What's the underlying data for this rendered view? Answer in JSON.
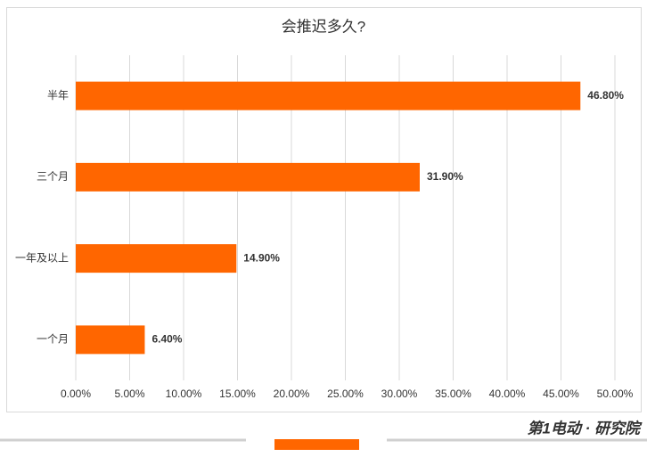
{
  "chart_data": {
    "type": "bar",
    "orientation": "horizontal",
    "title": "会推迟多久?",
    "categories": [
      "半年",
      "三个月",
      "一年及以上",
      "一个月"
    ],
    "values": [
      46.8,
      31.9,
      14.9,
      6.4
    ],
    "value_labels": [
      "46.80%",
      "31.90%",
      "14.90%",
      "6.40%"
    ],
    "color": "#ff6600",
    "xlim": [
      0,
      50
    ],
    "xticks": [
      {
        "value": 0,
        "label": "0.00%"
      },
      {
        "value": 5,
        "label": "5.00%"
      },
      {
        "value": 10,
        "label": "10.00%"
      },
      {
        "value": 15,
        "label": "15.00%"
      },
      {
        "value": 20,
        "label": "20.00%"
      },
      {
        "value": 25,
        "label": "25.00%"
      },
      {
        "value": 30,
        "label": "30.00%"
      },
      {
        "value": 35,
        "label": "35.00%"
      },
      {
        "value": 40,
        "label": "40.00%"
      },
      {
        "value": 45,
        "label": "45.00%"
      },
      {
        "value": 50,
        "label": "50.00%"
      }
    ],
    "grid": true
  },
  "brand": "第1电动 · 研究院"
}
